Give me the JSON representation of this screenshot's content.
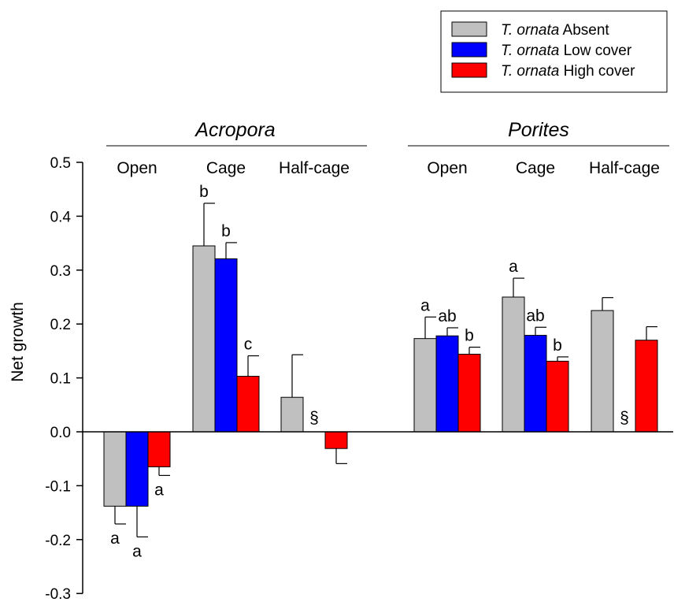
{
  "chart_data": {
    "type": "bar",
    "ylabel": "Net growth",
    "ylim": [
      -0.3,
      0.5
    ],
    "yticks": [
      "-0.3",
      "-0.2",
      "-0.1",
      "0.0",
      "0.1",
      "0.2",
      "0.3",
      "0.4",
      "0.5"
    ],
    "grid": false,
    "legend_position": "top-right",
    "legend": [
      {
        "italic": "T. ornata",
        "text": " Absent",
        "color": "#c0c0c0"
      },
      {
        "italic": "T. ornata",
        "text": " Low cover",
        "color": "#0000ff"
      },
      {
        "italic": "T. ornata",
        "text": " High cover",
        "color": "#ff0000"
      }
    ],
    "groups": [
      {
        "genus": "Acropora",
        "treatments": [
          {
            "name": "Open",
            "bars": [
              {
                "series": 0,
                "value": -0.138,
                "err": 0.033,
                "label": "a"
              },
              {
                "series": 1,
                "value": -0.138,
                "err": 0.057,
                "label": "a"
              },
              {
                "series": 2,
                "value": -0.065,
                "err": 0.016,
                "label": "a"
              }
            ]
          },
          {
            "name": "Cage",
            "bars": [
              {
                "series": 0,
                "value": 0.345,
                "err": 0.079,
                "label": "b"
              },
              {
                "series": 1,
                "value": 0.321,
                "err": 0.03,
                "label": "b"
              },
              {
                "series": 2,
                "value": 0.103,
                "err": 0.038,
                "label": "c"
              }
            ]
          },
          {
            "name": "Half-cage",
            "missing_symbol": "§",
            "bars": [
              {
                "series": 0,
                "value": 0.064,
                "err": 0.079,
                "label": ""
              },
              {
                "series": 1,
                "value": null,
                "err": null,
                "label": ""
              },
              {
                "series": 2,
                "value": -0.031,
                "err": 0.028,
                "label": ""
              }
            ]
          }
        ]
      },
      {
        "genus": "Porites",
        "treatments": [
          {
            "name": "Open",
            "bars": [
              {
                "series": 0,
                "value": 0.173,
                "err": 0.04,
                "label": "a"
              },
              {
                "series": 1,
                "value": 0.178,
                "err": 0.015,
                "label": "ab"
              },
              {
                "series": 2,
                "value": 0.144,
                "err": 0.013,
                "label": "b"
              }
            ]
          },
          {
            "name": "Cage",
            "bars": [
              {
                "series": 0,
                "value": 0.25,
                "err": 0.035,
                "label": "a"
              },
              {
                "series": 1,
                "value": 0.179,
                "err": 0.015,
                "label": "ab"
              },
              {
                "series": 2,
                "value": 0.131,
                "err": 0.008,
                "label": "b"
              }
            ]
          },
          {
            "name": "Half-cage",
            "missing_symbol": "§",
            "bars": [
              {
                "series": 0,
                "value": 0.225,
                "err": 0.024,
                "label": ""
              },
              {
                "series": 1,
                "value": null,
                "err": null,
                "label": ""
              },
              {
                "series": 2,
                "value": 0.17,
                "err": 0.025,
                "label": ""
              }
            ]
          }
        ]
      }
    ]
  }
}
